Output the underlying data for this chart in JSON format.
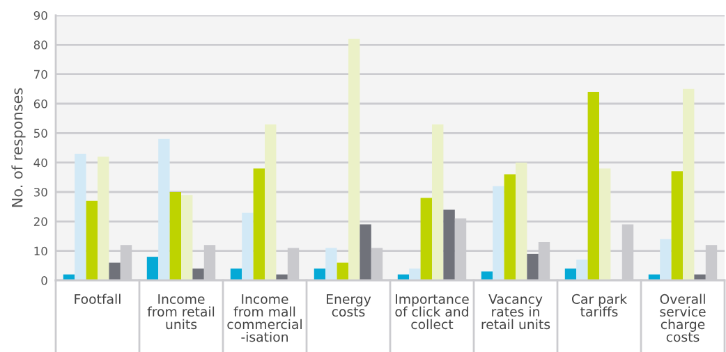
{
  "chart_data": {
    "type": "bar",
    "ylabel": "No. of responses",
    "categories": [
      "Footfall",
      "Income\nfrom retail\nunits",
      "Income\nfrom mall\ncommercial\n-isation",
      "Energy\ncosts",
      "Importance\nof click and\ncollect",
      "Vacancy\nrates in\nretail units",
      "Car park\ntariffs",
      "Overall\nservice\ncharge\ncosts"
    ],
    "series": [
      {
        "color": "#04a9d6",
        "values": [
          2,
          8,
          4,
          4,
          2,
          3,
          4,
          2
        ]
      },
      {
        "color": "#d2e9f6",
        "values": [
          43,
          48,
          23,
          11,
          4,
          32,
          7,
          14
        ]
      },
      {
        "color": "#bed300",
        "values": [
          27,
          30,
          38,
          6,
          28,
          36,
          64,
          37
        ]
      },
      {
        "color": "#ebf1c7",
        "values": [
          42,
          29,
          53,
          82,
          53,
          40,
          38,
          65
        ]
      },
      {
        "color": "#70727a",
        "values": [
          6,
          4,
          2,
          19,
          24,
          9,
          0,
          2
        ]
      },
      {
        "color": "#c9c9cd",
        "values": [
          12,
          12,
          11,
          11,
          21,
          13,
          19,
          12
        ]
      }
    ],
    "ylim": [
      0,
      90
    ],
    "yticks": [
      0,
      10,
      20,
      30,
      40,
      50,
      60,
      70,
      80,
      90
    ],
    "grid": "y"
  }
}
